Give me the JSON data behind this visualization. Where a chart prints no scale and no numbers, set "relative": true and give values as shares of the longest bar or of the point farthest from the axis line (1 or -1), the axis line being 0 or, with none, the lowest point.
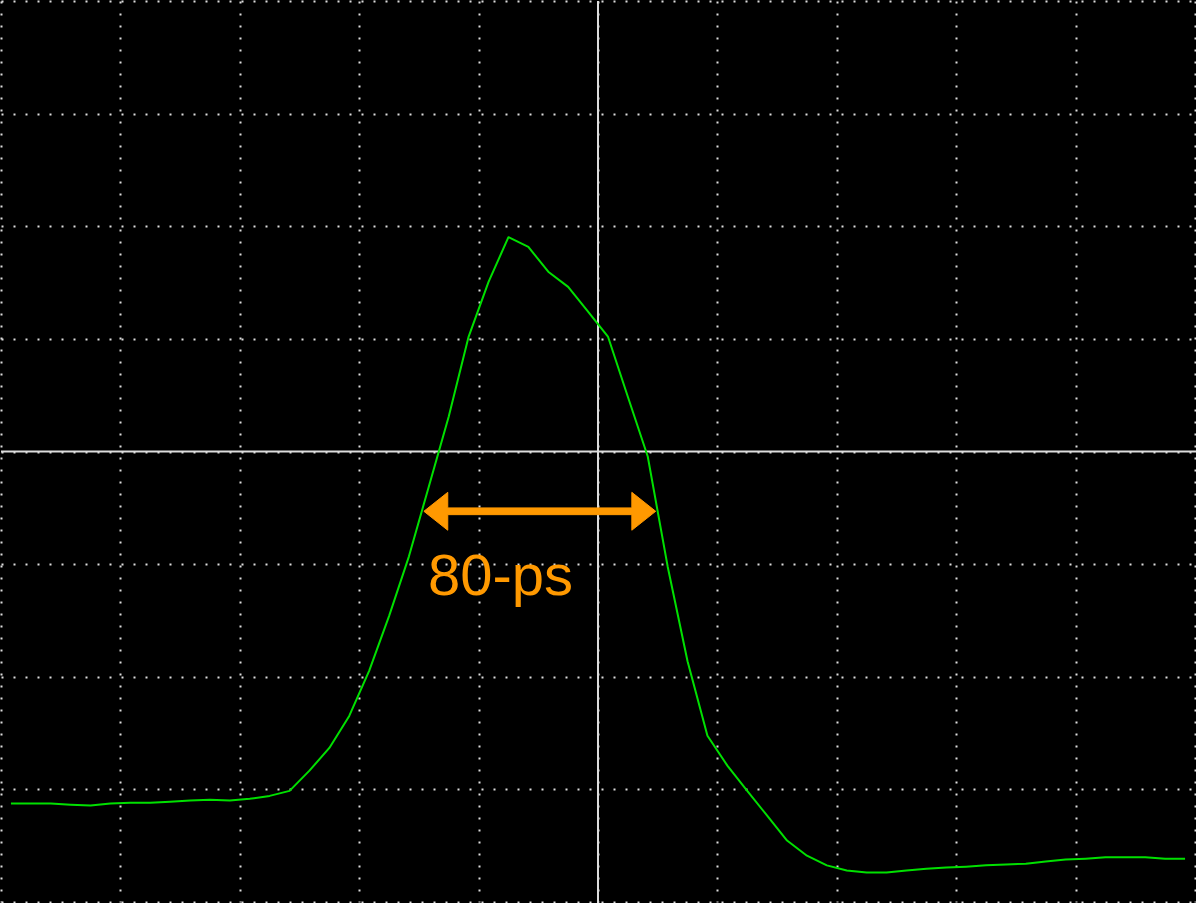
{
  "chart_data": {
    "type": "line",
    "relative": true,
    "grid": true,
    "tick_labels": false,
    "marker": "none",
    "line_style": "solid",
    "categories": [
      null,
      null,
      null,
      null,
      null,
      null,
      null,
      null,
      null,
      null,
      null,
      null,
      null,
      null,
      null,
      null,
      null,
      null,
      null,
      null,
      null,
      null,
      null,
      null,
      null,
      null,
      null,
      null,
      null,
      null,
      null,
      null,
      null,
      null,
      null,
      null,
      null,
      null,
      null,
      null,
      null,
      null,
      null,
      null,
      null,
      null,
      null,
      null,
      null,
      null,
      null,
      null,
      null,
      null,
      null,
      null,
      null,
      null,
      null,
      null
    ],
    "series": [
      {
        "color": "#00e000",
        "values": [
          -0.836,
          -0.836,
          -0.836,
          -0.839,
          -0.841,
          -0.836,
          -0.834,
          -0.834,
          -0.832,
          -0.829,
          -0.827,
          -0.829,
          -0.825,
          -0.818,
          -0.806,
          -0.758,
          -0.704,
          -0.628,
          -0.521,
          -0.391,
          -0.249,
          -0.083,
          0.083,
          0.273,
          0.403,
          0.509,
          0.486,
          0.427,
          0.391,
          0.332,
          0.273,
          0.13,
          -0.012,
          -0.273,
          -0.498,
          -0.675,
          -0.746,
          -0.806,
          -0.865,
          -0.924,
          -0.96,
          -0.983,
          -0.995,
          -1,
          -1,
          -0.995,
          -0.991,
          -0.988,
          -0.986,
          -0.983,
          -0.981,
          -0.979,
          -0.974,
          -0.969,
          -0.967,
          -0.964,
          -0.964,
          -0.964,
          -0.967,
          -0.967
        ]
      }
    ],
    "annotations": [
      "80-ps"
    ]
  }
}
